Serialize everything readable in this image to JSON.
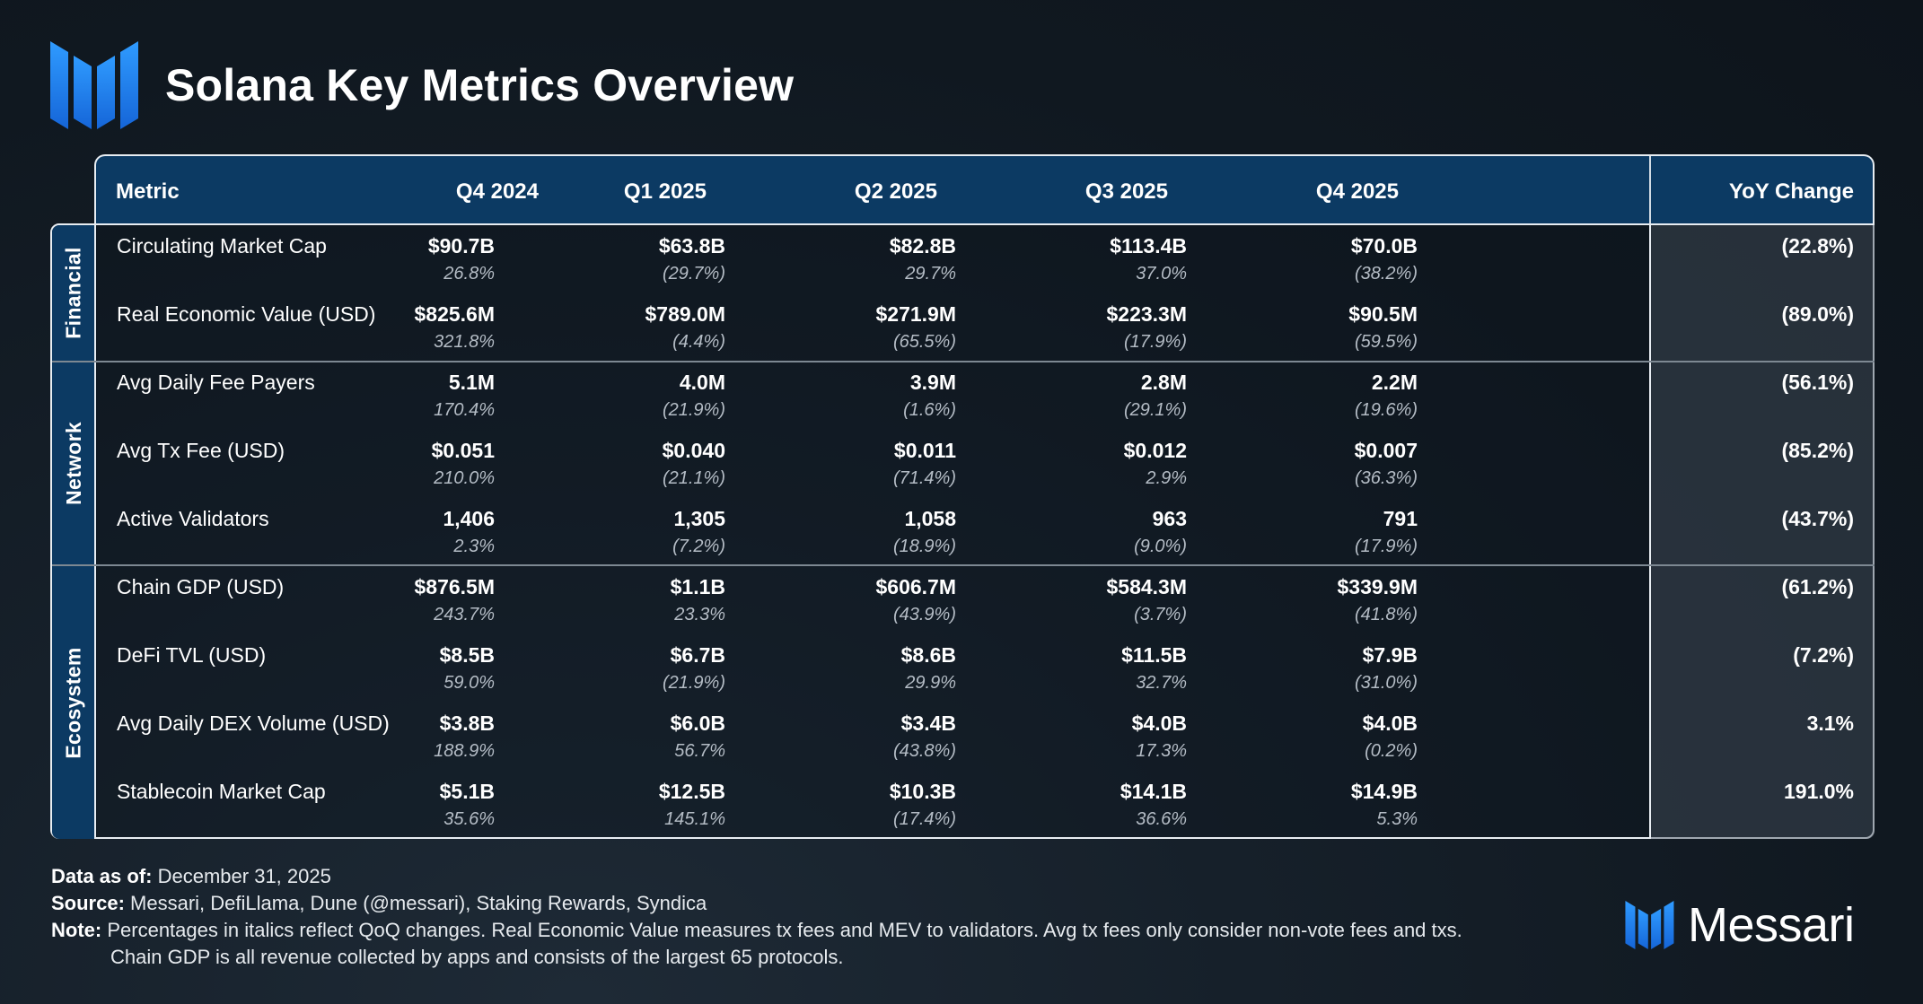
{
  "title": "Solana Key Metrics Overview",
  "colors": {
    "accent": "#1e88f0",
    "header_bg": "#0c3a63",
    "border": "#e8edf2"
  },
  "table": {
    "headers": [
      "Metric",
      "Q4 2024",
      "Q1 2025",
      "Q2 2025",
      "Q3 2025",
      "Q4 2025",
      "YoY Change"
    ],
    "categories": [
      "Financial",
      "Network",
      "Ecosystem"
    ],
    "rows": [
      {
        "metric": "Circulating Market Cap",
        "values": [
          "$90.7B",
          "$63.8B",
          "$82.8B",
          "$113.4B",
          "$70.0B"
        ],
        "changes": [
          "26.8%",
          "(29.7%)",
          "29.7%",
          "37.0%",
          "(38.2%)"
        ],
        "yoy": "(22.8%)"
      },
      {
        "metric": "Real Economic Value (USD)",
        "values": [
          "$825.6M",
          "$789.0M",
          "$271.9M",
          "$223.3M",
          "$90.5M"
        ],
        "changes": [
          "321.8%",
          "(4.4%)",
          "(65.5%)",
          "(17.9%)",
          "(59.5%)"
        ],
        "yoy": "(89.0%)"
      },
      {
        "metric": "Avg Daily Fee Payers",
        "values": [
          "5.1M",
          "4.0M",
          "3.9M",
          "2.8M",
          "2.2M"
        ],
        "changes": [
          "170.4%",
          "(21.9%)",
          "(1.6%)",
          "(29.1%)",
          "(19.6%)"
        ],
        "yoy": "(56.1%)"
      },
      {
        "metric": "Avg Tx Fee (USD)",
        "values": [
          "$0.051",
          "$0.040",
          "$0.011",
          "$0.012",
          "$0.007"
        ],
        "changes": [
          "210.0%",
          "(21.1%)",
          "(71.4%)",
          "2.9%",
          "(36.3%)"
        ],
        "yoy": "(85.2%)"
      },
      {
        "metric": "Active Validators",
        "values": [
          "1,406",
          "1,305",
          "1,058",
          "963",
          "791"
        ],
        "changes": [
          "2.3%",
          "(7.2%)",
          "(18.9%)",
          "(9.0%)",
          "(17.9%)"
        ],
        "yoy": "(43.7%)"
      },
      {
        "metric": "Chain GDP (USD)",
        "values": [
          "$876.5M",
          "$1.1B",
          "$606.7M",
          "$584.3M",
          "$339.9M"
        ],
        "changes": [
          "243.7%",
          "23.3%",
          "(43.9%)",
          "(3.7%)",
          "(41.8%)"
        ],
        "yoy": "(61.2%)"
      },
      {
        "metric": "DeFi TVL (USD)",
        "values": [
          "$8.5B",
          "$6.7B",
          "$8.6B",
          "$11.5B",
          "$7.9B"
        ],
        "changes": [
          "59.0%",
          "(21.9%)",
          "29.9%",
          "32.7%",
          "(31.0%)"
        ],
        "yoy": "(7.2%)"
      },
      {
        "metric": "Avg Daily DEX Volume (USD)",
        "values": [
          "$3.8B",
          "$6.0B",
          "$3.4B",
          "$4.0B",
          "$4.0B"
        ],
        "changes": [
          "188.9%",
          "56.7%",
          "(43.8%)",
          "17.3%",
          "(0.2%)"
        ],
        "yoy": "3.1%"
      },
      {
        "metric": "Stablecoin Market Cap",
        "values": [
          "$5.1B",
          "$12.5B",
          "$10.3B",
          "$14.1B",
          "$14.9B"
        ],
        "changes": [
          "35.6%",
          "145.1%",
          "(17.4%)",
          "36.6%",
          "5.3%"
        ],
        "yoy": "191.0%"
      }
    ]
  },
  "footer": {
    "data_as_of_label": "Data as of:",
    "data_as_of": "December 31, 2025",
    "source_label": "Source:",
    "source": "Messari, DefiLlama, Dune (@messari), Staking Rewards, Syndica",
    "note_label": "Note:",
    "note_line1": "Percentages in italics reflect QoQ changes. Real Economic Value measures tx fees and MEV to validators. Avg tx fees only consider non-vote fees and txs.",
    "note_line2": "Chain GDP is all revenue collected by apps and consists of the largest 65 protocols."
  },
  "brand": {
    "name": "Messari",
    "icon": "messari-logo-icon"
  }
}
